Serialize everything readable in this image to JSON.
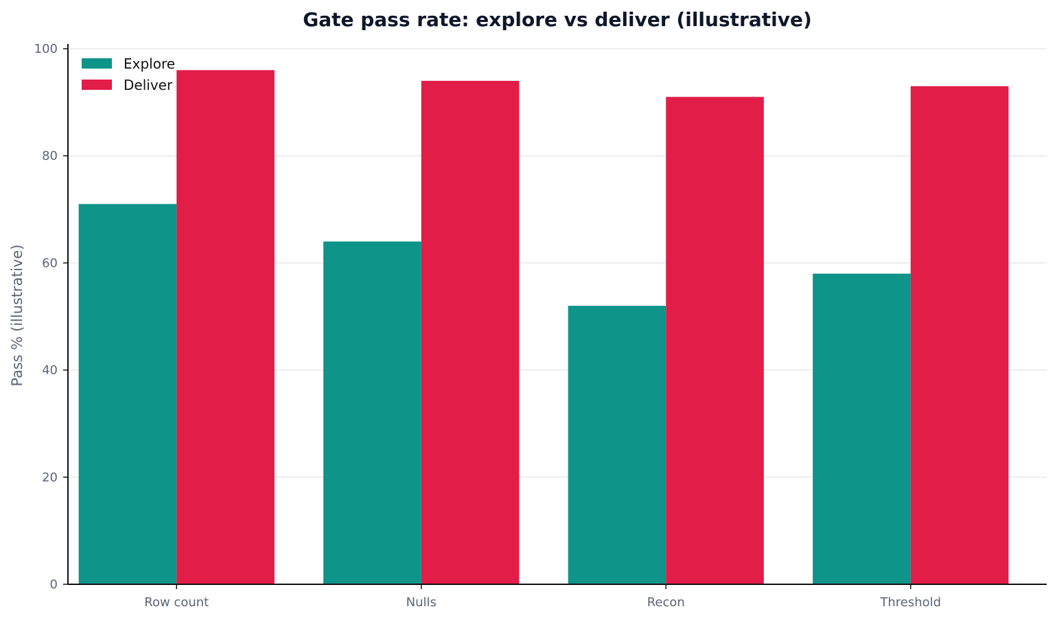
{
  "chart_data": {
    "type": "bar",
    "title": "Gate pass rate: explore vs deliver (illustrative)",
    "xlabel": "",
    "ylabel": "Pass % (illustrative)",
    "categories": [
      "Row count",
      "Nulls",
      "Recon",
      "Threshold"
    ],
    "series": [
      {
        "name": "Explore",
        "values": [
          71,
          64,
          52,
          58
        ],
        "color": "#0e9488"
      },
      {
        "name": "Deliver",
        "values": [
          96,
          94,
          91,
          93
        ],
        "color": "#e11d48"
      }
    ],
    "ylim": [
      0,
      100
    ],
    "yticks": [
      0,
      20,
      40,
      60,
      80,
      100
    ],
    "grid": "y-major",
    "legend_position": "top-left"
  }
}
